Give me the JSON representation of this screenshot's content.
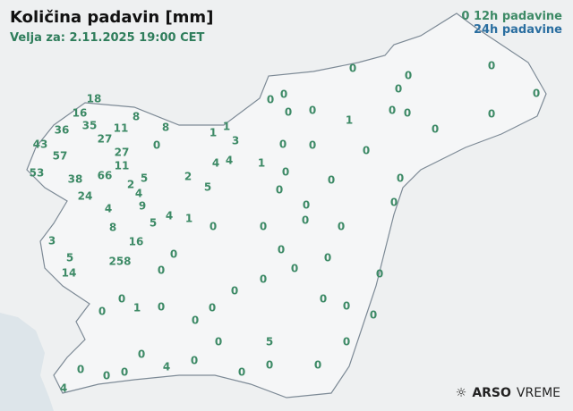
{
  "header": {
    "title": "Količina padavin [mm]",
    "valid": "Velja za: 2.11.2025 19:00 CET"
  },
  "legend": {
    "sample": "0",
    "label_12h": "12h padavine",
    "label_24h": "24h padavine",
    "color_12h": "#3d8a66",
    "color_24h": "#2a6ea0"
  },
  "logo": {
    "brand": "ARSO",
    "product": "VREME",
    "icon": "sun-icon"
  },
  "colors": {
    "land": "#f2f3f4",
    "sea": "#dde5ea",
    "border": "#7d8a96"
  },
  "stations": [
    "0",
    "0",
    "0",
    "0",
    "0",
    "0",
    "0",
    "18",
    "16",
    "0",
    "0",
    "0",
    "0",
    "0",
    "8",
    "1",
    "0",
    "36",
    "35",
    "11",
    "8",
    "1",
    "1",
    "3",
    "27",
    "0",
    "0",
    "43",
    "57",
    "27",
    "0",
    "0",
    "4",
    "4",
    "1",
    "11",
    "53",
    "38",
    "66",
    "0",
    "2",
    "2",
    "5",
    "0",
    "4",
    "0",
    "5",
    "0",
    "9",
    "24",
    "4",
    "5",
    "4",
    "1",
    "0",
    "0",
    "0",
    "0",
    "0",
    "0",
    "8",
    "16",
    "3",
    "0",
    "0",
    "258",
    "5",
    "0",
    "0",
    "0",
    "14",
    "0",
    "0",
    "0",
    "0",
    "0",
    "1",
    "0",
    "0",
    "0",
    "0",
    "0",
    "0",
    "0",
    "5",
    "0",
    "0",
    "0",
    "0",
    "4",
    "0",
    "0",
    "0",
    "0",
    "0",
    "4",
    "0"
  ]
}
